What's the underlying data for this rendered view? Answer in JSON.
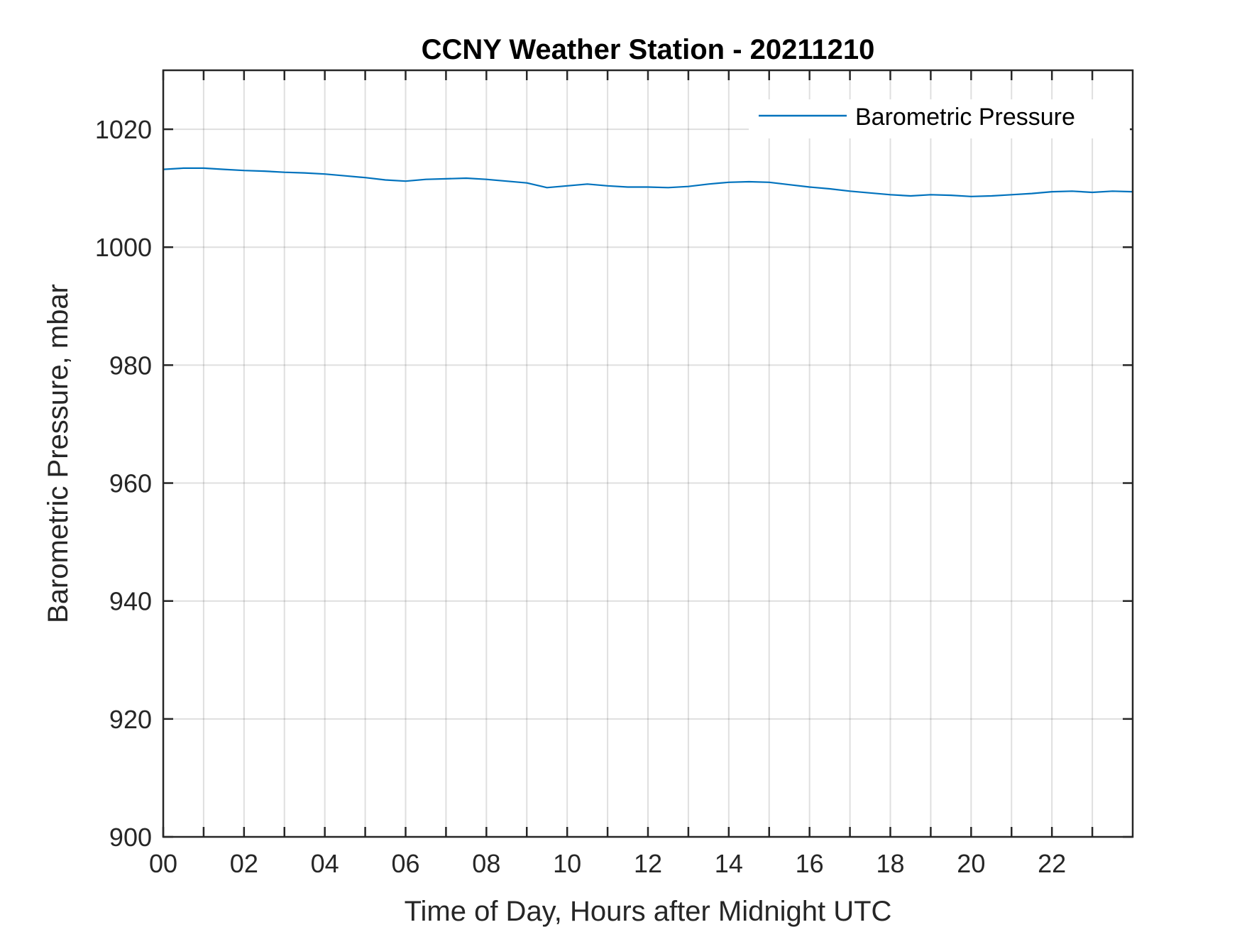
{
  "chart_data": {
    "type": "line",
    "title": "CCNY Weather Station - 20211210",
    "xlabel": "Time of Day, Hours after Midnight UTC",
    "ylabel": "Barometric Pressure, mbar",
    "xlim": [
      0,
      24
    ],
    "ylim": [
      900,
      1030
    ],
    "x_ticks": [
      0,
      2,
      4,
      6,
      8,
      10,
      12,
      14,
      16,
      18,
      20,
      22
    ],
    "x_tick_labels": [
      "00",
      "02",
      "04",
      "06",
      "08",
      "10",
      "12",
      "14",
      "16",
      "18",
      "20",
      "22"
    ],
    "x_minor_gridlines": [
      1,
      3,
      5,
      7,
      9,
      11,
      13,
      15,
      17,
      19,
      21,
      23
    ],
    "y_ticks": [
      900,
      920,
      940,
      960,
      980,
      1000,
      1020
    ],
    "y_tick_labels": [
      "900",
      "920",
      "940",
      "960",
      "980",
      "1000",
      "1020"
    ],
    "grid": true,
    "legend_position": "top-right",
    "series": [
      {
        "name": "Barometric Pressure",
        "color": "#0072BD",
        "x": [
          0,
          0.5,
          1,
          1.5,
          2,
          2.5,
          3,
          3.5,
          4,
          4.5,
          5,
          5.5,
          6,
          6.5,
          7,
          7.5,
          8,
          8.5,
          9,
          9.5,
          10,
          10.5,
          11,
          11.5,
          12,
          12.5,
          13,
          13.5,
          14,
          14.5,
          15,
          15.5,
          16,
          16.5,
          17,
          17.5,
          18,
          18.5,
          19,
          19.5,
          20,
          20.5,
          21,
          21.5,
          22,
          22.5,
          23,
          23.5,
          24
        ],
        "y": [
          1013.2,
          1013.4,
          1013.4,
          1013.2,
          1013.0,
          1012.9,
          1012.7,
          1012.6,
          1012.4,
          1012.1,
          1011.8,
          1011.4,
          1011.2,
          1011.5,
          1011.6,
          1011.7,
          1011.5,
          1011.2,
          1010.9,
          1010.1,
          1010.4,
          1010.7,
          1010.4,
          1010.2,
          1010.2,
          1010.1,
          1010.3,
          1010.7,
          1011.0,
          1011.1,
          1011.0,
          1010.6,
          1010.2,
          1009.9,
          1009.5,
          1009.2,
          1008.9,
          1008.7,
          1008.9,
          1008.8,
          1008.6,
          1008.7,
          1008.9,
          1009.1,
          1009.4,
          1009.5,
          1009.3,
          1009.5,
          1009.4
        ]
      }
    ]
  }
}
